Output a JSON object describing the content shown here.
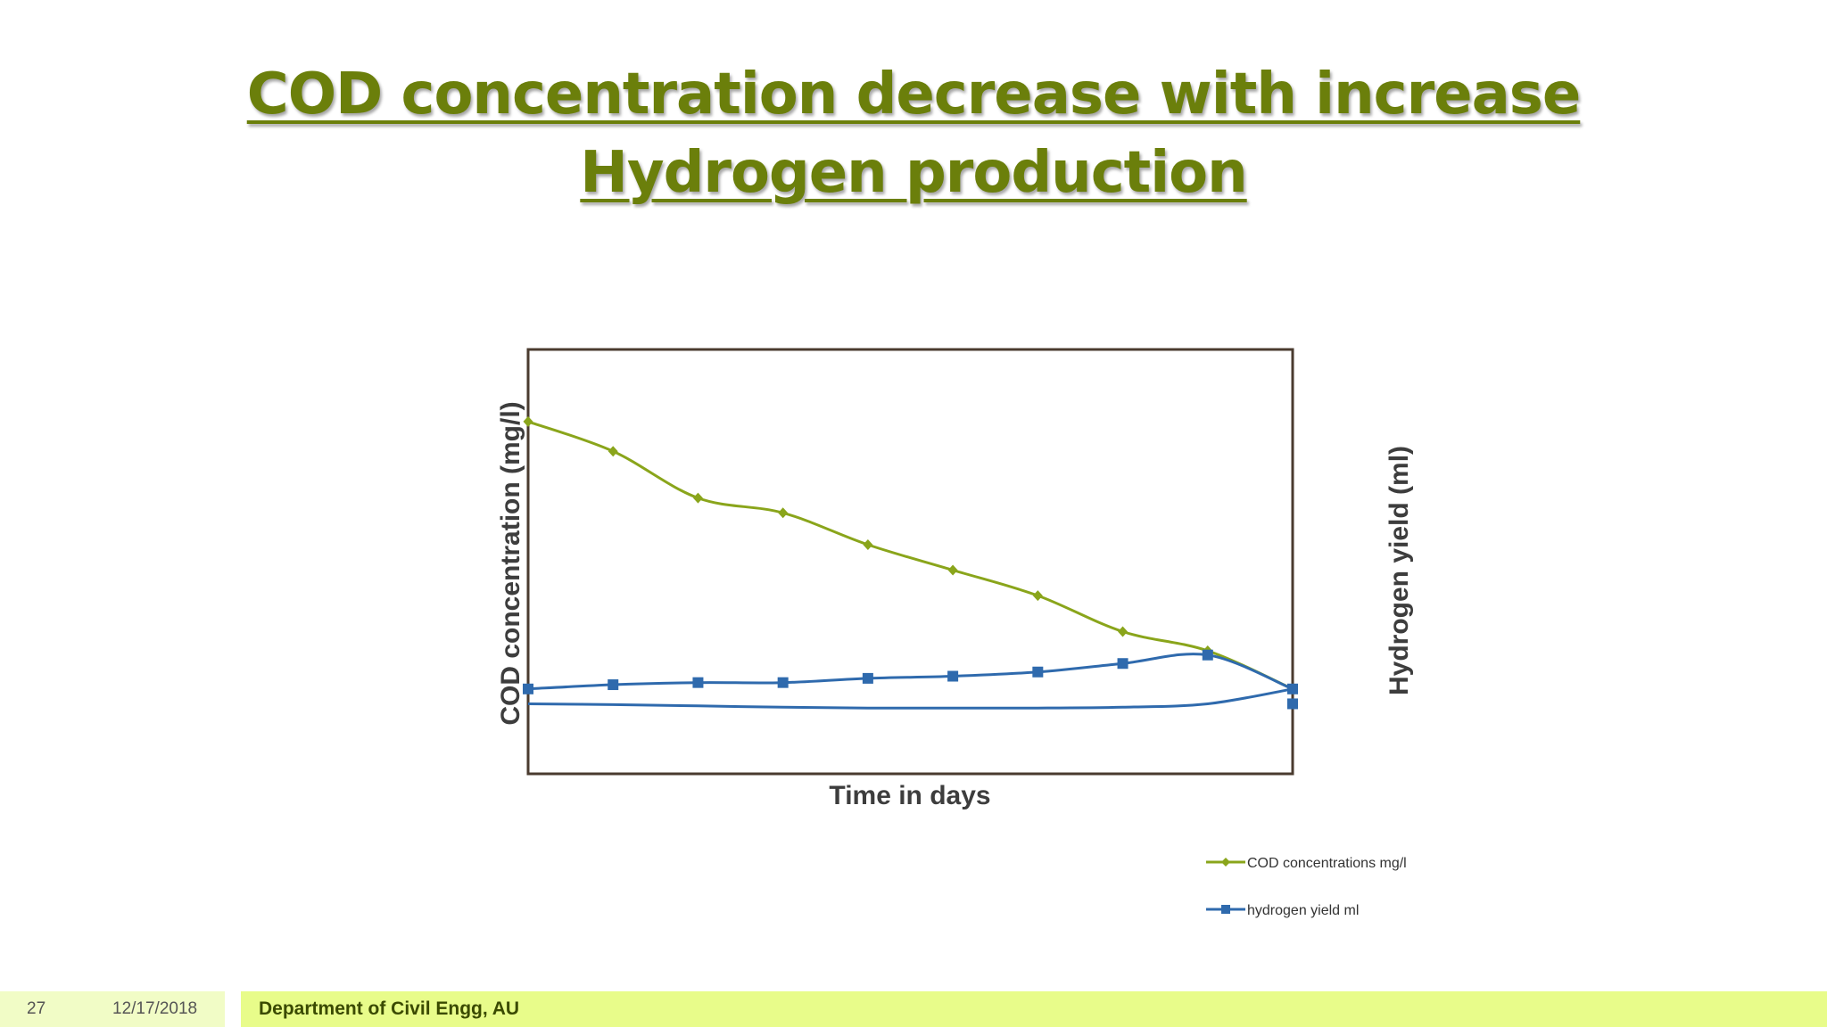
{
  "slide": {
    "title_line1": "COD concentration decrease with increase",
    "title_line2": "Hydrogen production"
  },
  "footer": {
    "page_number": "27",
    "date": "12/17/2018",
    "department": "Department of Civil Engg, AU"
  },
  "colors": {
    "title": "#6b7f0b",
    "cod_series": "#8aa51b",
    "hydrogen_series": "#2f6aad",
    "plot_border": "#4a3b2f"
  },
  "chart_data": {
    "type": "line",
    "title": "",
    "xlabel": "Time in days",
    "ylabel": "COD concentration (mg/l)",
    "y2label": "Hydrogen yield (ml)",
    "x": [
      0,
      1,
      2,
      3,
      4,
      5,
      6,
      7,
      8,
      9
    ],
    "xlim": [
      0,
      9
    ],
    "ylim": [
      0,
      100
    ],
    "grid": false,
    "legend_position": "bottom-right",
    "series": [
      {
        "name": "COD concentrations mg/l",
        "marker": "diamond",
        "color": "#8aa51b",
        "values": [
          83,
          76,
          65,
          61.5,
          54,
          48,
          42,
          33.5,
          29,
          20
        ]
      },
      {
        "name": "hydrogen yield ml",
        "marker": "square",
        "color": "#2f6aad",
        "values": [
          20,
          21,
          21.5,
          21.5,
          22.5,
          23,
          24,
          26,
          28,
          20
        ],
        "return_trace": [
          16.5,
          16.3,
          16,
          15.7,
          15.5,
          15.5,
          15.5,
          15.7,
          16.5
        ]
      }
    ]
  }
}
